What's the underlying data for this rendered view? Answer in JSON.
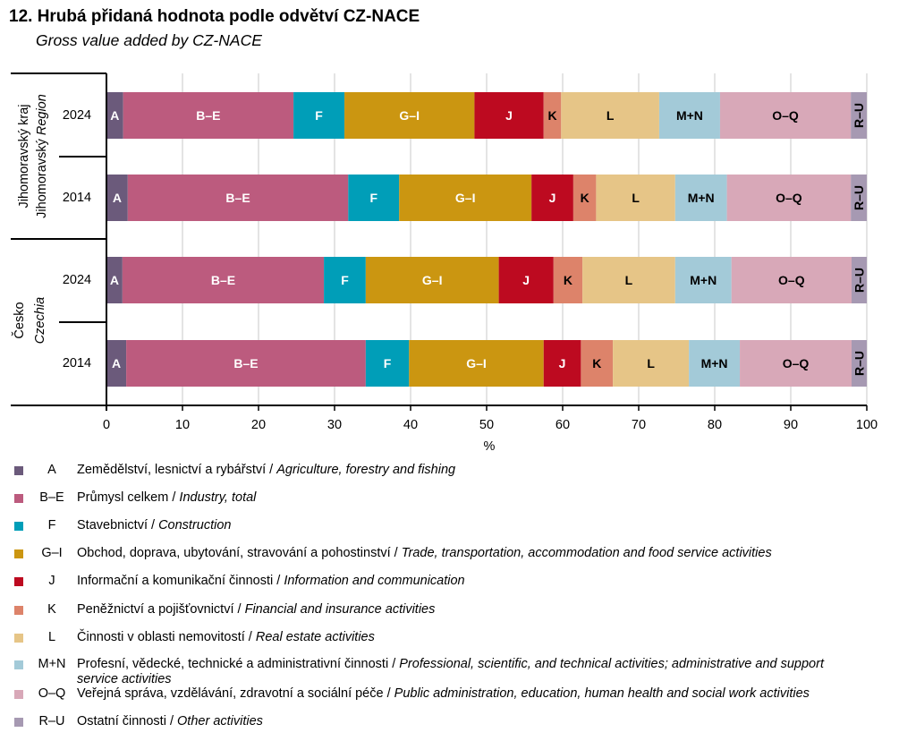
{
  "title": "12. Hrubá přidaná hodnota podle odvětví CZ-NACE",
  "subtitle": "Gross value added by CZ-NACE",
  "colors": {
    "A": "#6b5a7b",
    "B–E": "#bc5b7e",
    "F": "#009eb8",
    "G–I": "#cb9611",
    "J": "#bd0a20",
    "K": "#dd836a",
    "L": "#e6c587",
    "M+N": "#a3cad8",
    "O–Q": "#d8a8b8",
    "R–U": "#a699b2"
  },
  "chart_data": {
    "type": "bar",
    "orientation": "horizontal",
    "stacked": true,
    "title": "12. Hrubá přidaná hodnota podle odvětví CZ-NACE",
    "subtitle": "Gross value added by CZ-NACE",
    "xlabel": "%",
    "ylabel": "",
    "xlim": [
      0,
      100
    ],
    "xticks": [
      0,
      10,
      20,
      30,
      40,
      50,
      60,
      70,
      80,
      90,
      100
    ],
    "grid": true,
    "legend": "bottom",
    "groups": [
      {
        "name_cz": "Jihomoravský kraj",
        "name_en_prefix": "Jihomoravský",
        "name_en": "Region",
        "categories": [
          "2024",
          "2014"
        ]
      },
      {
        "name_cz": "Česko",
        "name_en": "Czechia",
        "categories": [
          "2024",
          "2014"
        ]
      }
    ],
    "categories": [
      "Jihomoravský kraj 2024",
      "Jihomoravský kraj 2014",
      "Česko 2024",
      "Česko 2014"
    ],
    "category_labels": [
      "2024",
      "2014",
      "2024",
      "2014"
    ],
    "series": [
      {
        "name": "A",
        "values": [
          2.2,
          2.8,
          2.1,
          2.6
        ],
        "label_color": "#ffffff"
      },
      {
        "name": "B–E",
        "values": [
          22.4,
          29.0,
          26.5,
          31.5
        ],
        "label_color": "#ffffff"
      },
      {
        "name": "F",
        "values": [
          6.7,
          6.7,
          5.5,
          5.7
        ],
        "label_color": "#ffffff"
      },
      {
        "name": "G–I",
        "values": [
          17.1,
          17.4,
          17.5,
          17.7
        ],
        "label_color": "#ffffff"
      },
      {
        "name": "J",
        "values": [
          9.1,
          5.5,
          7.2,
          4.9
        ],
        "label_color": "#ffffff"
      },
      {
        "name": "K",
        "values": [
          2.3,
          3.0,
          3.8,
          4.2
        ],
        "label_color": "#000000"
      },
      {
        "name": "L",
        "values": [
          12.9,
          10.4,
          12.2,
          10.0
        ],
        "label_color": "#000000"
      },
      {
        "name": "M+N",
        "values": [
          8.0,
          6.8,
          7.4,
          6.7
        ],
        "label_color": "#000000"
      },
      {
        "name": "O–Q",
        "values": [
          17.2,
          16.3,
          15.8,
          14.7
        ],
        "label_color": "#000000"
      },
      {
        "name": "R–U",
        "values": [
          2.1,
          2.1,
          2.0,
          2.0
        ],
        "label_color": "#000000"
      }
    ]
  },
  "legend": [
    {
      "code": "A",
      "cz": "Zemědělství,  lesnictví  a rybářství / ",
      "en": "Agriculture, forestry and fishing"
    },
    {
      "code": "B–E",
      "cz": "Průmysl celkem / ",
      "en": "Industry, total"
    },
    {
      "code": "F",
      "cz": "Stavebnictví  / ",
      "en": "Construction"
    },
    {
      "code": "G–I",
      "cz": "Obchod, doprava, ubytování,  stravování  a pohostinství  / ",
      "en": "Trade, transportation, accommodation and food service activities"
    },
    {
      "code": "J",
      "cz": "Informační a komunikační  činnosti / ",
      "en": "Information and communication"
    },
    {
      "code": "K",
      "cz": "Peněžnictví  a pojišťovnictví  / ",
      "en": "Financial and insurance activities"
    },
    {
      "code": "L",
      "cz": "Činnosti v oblasti  nemovitostí  / ",
      "en": "Real estate activities"
    },
    {
      "code": "M+N",
      "cz": "Profesní, vědecké, technické a administrativní činnosti / ",
      "en": "Professional, scientific, and technical activities; administrative and support service activities"
    },
    {
      "code": "O–Q",
      "cz": "Veřejná správa,  vzdělávání,  zdravotní a sociální péče / ",
      "en": "Public administration, education, human health and social work activities"
    },
    {
      "code": "R–U",
      "cz": "Ostatní činnosti / ",
      "en": "Other activities"
    }
  ]
}
